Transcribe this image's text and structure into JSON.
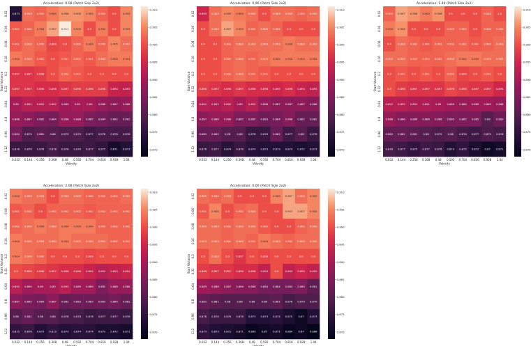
{
  "chart_data": [
    {
      "type": "heatmap",
      "title": "Acceleration: 0.08 (Patch Size 2x2)",
      "xlabel": "Velocity",
      "ylabel": "Start Variance",
      "x": [
        "0.032",
        "0.144",
        "0.256",
        "0.368",
        "0.48",
        "0.592",
        "0.704",
        "0.816",
        "0.928",
        "1.04"
      ],
      "y": [
        "0.02",
        "0.06",
        "0.08",
        "0.16",
        "0.2",
        "0.32",
        "0.64",
        "0.8",
        "0.96",
        "1.12"
      ],
      "colorbar_ticks": [
        "0.910",
        "0.905",
        "0.900",
        "0.895",
        "0.890",
        "0.885",
        "0.880",
        "0.875",
        "0.870"
      ],
      "clim": [
        0.868,
        0.911
      ],
      "values": [
        [
          0.873,
          0.903,
          0.902,
          0.904,
          0.906,
          0.906,
          0.905,
          0.902,
          0.9,
          0.905
        ],
        [
          0.901,
          0.902,
          0.904,
          0.907,
          0.911,
          0.905,
          0.9,
          0.904,
          0.9,
          0.905
        ],
        [
          0.901,
          0.903,
          0.902,
          0.899,
          0.9,
          0.902,
          0.904,
          0.902,
          0.905,
          0.903
        ],
        [
          0.904,
          0.903,
          0.901,
          0.9,
          0.901,
          0.902,
          0.901,
          0.903,
          0.904,
          0.904
        ],
        [
          0.897,
          0.897,
          0.898,
          0.9,
          0.902,
          0.901,
          0.9,
          0.9,
          0.9,
          0.9
        ],
        [
          0.897,
          0.897,
          0.896,
          0.896,
          0.897,
          0.898,
          0.898,
          0.898,
          0.894,
          0.893
        ],
        [
          0.89,
          0.892,
          0.892,
          0.892,
          0.889,
          0.89,
          0.89,
          0.888,
          0.887,
          0.888
        ],
        [
          0.888,
          0.887,
          0.885,
          0.884,
          0.888,
          0.888,
          0.885,
          0.884,
          0.882,
          0.882
        ],
        [
          0.884,
          0.879,
          0.881,
          0.88,
          0.879,
          0.879,
          0.877,
          0.878,
          0.878,
          0.878
        ],
        [
          0.876,
          0.876,
          0.876,
          0.878,
          0.876,
          0.876,
          0.877,
          0.875,
          0.871,
          0.873
        ]
      ]
    },
    {
      "type": "heatmap",
      "title": "Acceleration: 0.96 (Patch Size 2x2)",
      "xlabel": "Velocity",
      "ylabel": "Start Variance",
      "x": [
        "0.032",
        "0.144",
        "0.256",
        "0.368",
        "0.48",
        "0.592",
        "0.704",
        "0.816",
        "0.928",
        "1.04"
      ],
      "y": [
        "0.02",
        "0.06",
        "0.08",
        "0.16",
        "0.2",
        "0.32",
        "0.64",
        "0.8",
        "0.96",
        "1.12"
      ],
      "colorbar_ticks": [
        "0.910",
        "0.905",
        "0.900",
        "0.895",
        "0.890",
        "0.885",
        "0.880",
        "0.875",
        "0.870"
      ],
      "clim": [
        0.868,
        0.911
      ],
      "values": [
        [
          0.895,
          0.903,
          0.905,
          0.904,
          0.903,
          0.9,
          0.903,
          0.903,
          0.902,
          0.903
        ],
        [
          0.9,
          0.903,
          0.907,
          0.905,
          0.902,
          0.903,
          0.902,
          0.9,
          0.9,
          0.9
        ],
        [
          0.9,
          0.9,
          0.902,
          0.903,
          0.903,
          0.903,
          0.903,
          0.904,
          0.903,
          0.903
        ],
        [
          0.9,
          0.9,
          0.902,
          0.903,
          0.902,
          0.903,
          0.904,
          0.904,
          0.904,
          0.904
        ],
        [
          0.9,
          0.9,
          0.902,
          0.903,
          0.902,
          0.901,
          0.9,
          0.9,
          0.9,
          0.9
        ],
        [
          0.898,
          0.897,
          0.896,
          0.897,
          0.896,
          0.896,
          0.895,
          0.896,
          0.894,
          0.893
        ],
        [
          0.892,
          0.891,
          0.892,
          0.89,
          0.892,
          0.888,
          0.887,
          0.887,
          0.887,
          0.886
        ],
        [
          0.887,
          0.888,
          0.888,
          0.885,
          0.885,
          0.883,
          0.884,
          0.886,
          0.882,
          0.882
        ],
        [
          0.882,
          0.882,
          0.88,
          0.88,
          0.876,
          0.876,
          0.882,
          0.877,
          0.88,
          0.876
        ],
        [
          0.876,
          0.877,
          0.874,
          0.876,
          0.874,
          0.873,
          0.873,
          0.873,
          0.872,
          0.873
        ]
      ]
    },
    {
      "type": "heatmap",
      "title": "Acceleration: 1.44 (Patch Size 2x2)",
      "xlabel": "Velocity",
      "ylabel": "Start Variance",
      "x": [
        "0.032",
        "0.144",
        "0.256",
        "0.368",
        "0.48",
        "0.592",
        "0.704",
        "0.816",
        "0.928",
        "1.04"
      ],
      "y": [
        "0.02",
        "0.06",
        "0.08",
        "0.16",
        "0.2",
        "0.32",
        "0.64",
        "0.8",
        "0.96",
        "1.12"
      ],
      "colorbar_ticks": [
        "0.910",
        "0.905",
        "0.900",
        "0.895",
        "0.890",
        "0.885",
        "0.880",
        "0.875",
        "0.870"
      ],
      "clim": [
        0.868,
        0.911
      ],
      "values": [
        [
          0.902,
          0.907,
          0.906,
          0.904,
          0.906,
          0.9,
          0.9,
          0.9,
          0.902,
          0.9
        ],
        [
          0.904,
          0.906,
          0.9,
          0.9,
          0.9,
          0.902,
          0.902,
          0.9,
          0.902,
          0.902
        ],
        [
          0.9,
          0.903,
          0.902,
          0.901,
          0.902,
          0.902,
          0.902,
          0.901,
          0.902,
          0.903
        ],
        [
          0.903,
          0.903,
          0.902,
          0.902,
          0.902,
          0.903,
          0.904,
          0.904,
          0.903,
          0.903
        ],
        [
          0.9,
          0.901,
          0.9,
          0.901,
          0.9,
          0.902,
          0.899,
          0.9,
          0.901,
          0.9
        ],
        [
          0.9,
          0.898,
          0.897,
          0.897,
          0.897,
          0.899,
          0.898,
          0.897,
          0.897,
          0.895
        ],
        [
          0.892,
          0.892,
          0.891,
          0.891,
          0.89,
          0.889,
          0.888,
          0.889,
          0.889,
          0.888
        ],
        [
          0.888,
          0.886,
          0.886,
          0.886,
          0.886,
          0.885,
          0.885,
          0.885,
          0.88,
          0.883
        ],
        [
          0.882,
          0.882,
          0.881,
          0.88,
          0.879,
          0.88,
          0.878,
          0.877,
          0.879,
          0.878
        ],
        [
          0.878,
          0.877,
          0.875,
          0.877,
          0.876,
          0.873,
          0.875,
          0.872,
          0.87,
          0.871
        ]
      ]
    },
    {
      "type": "heatmap",
      "title": "Acceleration: 2.08 (Patch Size 2x2)",
      "xlabel": "Velocity",
      "ylabel": "Start Variance",
      "x": [
        "0.032",
        "0.144",
        "0.256",
        "0.368",
        "0.48",
        "0.592",
        "0.704",
        "0.816",
        "0.928",
        "1.04"
      ],
      "y": [
        "0.02",
        "0.06",
        "0.08",
        "0.16",
        "0.2",
        "0.32",
        "0.64",
        "0.8",
        "0.96",
        "1.12"
      ],
      "colorbar_ticks": [
        "0.910",
        "0.905",
        "0.900",
        "0.895",
        "0.890",
        "0.885",
        "0.880",
        "0.875",
        "0.870"
      ],
      "clim": [
        0.868,
        0.911
      ],
      "values": [
        [
          0.904,
          0.903,
          0.903,
          0.9,
          0.903,
          0.903,
          0.902,
          0.902,
          0.902,
          0.903
        ],
        [
          0.901,
          0.902,
          0.9,
          0.902,
          0.902,
          0.902,
          0.901,
          0.902,
          0.902,
          0.902
        ],
        [
          0.902,
          0.903,
          0.904,
          0.903,
          0.904,
          0.904,
          0.904,
          0.902,
          0.902,
          0.902
        ],
        [
          0.904,
          0.903,
          0.903,
          0.903,
          0.904,
          0.903,
          0.903,
          0.903,
          0.902,
          0.902
        ],
        [
          0.904,
          0.903,
          0.902,
          0.9,
          0.9,
          0.9,
          0.899,
          0.9,
          0.9,
          0.9
        ],
        [
          0.9,
          0.899,
          0.898,
          0.897,
          0.896,
          0.896,
          0.894,
          0.892,
          0.893,
          0.894
        ],
        [
          0.892,
          0.889,
          0.89,
          0.89,
          0.892,
          0.889,
          0.889,
          0.885,
          0.888,
          0.888
        ],
        [
          0.887,
          0.885,
          0.884,
          0.887,
          0.882,
          0.883,
          0.883,
          0.883,
          0.884,
          0.882
        ],
        [
          0.88,
          0.882,
          0.88,
          0.88,
          0.878,
          0.878,
          0.876,
          0.877,
          0.877,
          0.876
        ],
        [
          0.875,
          0.876,
          0.873,
          0.875,
          0.873,
          0.874,
          0.874,
          0.872,
          0.872,
          0.871
        ]
      ]
    },
    {
      "type": "heatmap",
      "title": "Acceleration: 0.00 (Patch Size 2x2)",
      "xlabel": "Velocity",
      "ylabel": "Start Variance",
      "x": [
        "0.032",
        "0.144",
        "0.256",
        "0.368",
        "0.48",
        "0.592",
        "0.704",
        "0.816",
        "0.928",
        "1.04"
      ],
      "y": [
        "0.02",
        "0.06",
        "0.08",
        "0.16",
        "0.2",
        "0.32",
        "0.64",
        "0.8",
        "0.96",
        "1.12"
      ],
      "colorbar_ticks": [
        "0.910",
        "0.905",
        "0.900",
        "0.895",
        "0.890",
        "0.885",
        "0.880",
        "0.875",
        "0.870"
      ],
      "clim": [
        0.868,
        0.911
      ],
      "values": [
        [
          0.903,
          0.902,
          0.903,
          0.9,
          0.9,
          0.9,
          0.905,
          0.907,
          0.903,
          0.905
        ],
        [
          0.901,
          0.905,
          0.9,
          0.902,
          0.903,
          0.9,
          0.9,
          0.907,
          0.907,
          0.905
        ],
        [
          0.903,
          0.903,
          0.902,
          0.903,
          0.903,
          0.901,
          0.9,
          0.9,
          0.902,
          0.903
        ],
        [
          0.903,
          0.903,
          0.902,
          0.903,
          0.902,
          0.904,
          0.903,
          0.902,
          0.903,
          0.903
        ],
        [
          0.9,
          0.903,
          0.9,
          0.897,
          0.9,
          0.899,
          0.9,
          0.9,
          0.9,
          0.9
        ],
        [
          0.898,
          0.897,
          0.897,
          0.896,
          0.896,
          0.893,
          0.9,
          0.893,
          0.895,
          0.893
        ],
        [
          0.889,
          0.888,
          0.887,
          0.886,
          0.886,
          0.884,
          0.884,
          0.884,
          0.885,
          0.881
        ],
        [
          0.882,
          0.881,
          0.88,
          0.88,
          0.88,
          0.88,
          0.881,
          0.878,
          0.879,
          0.879
        ],
        [
          0.878,
          0.876,
          0.876,
          0.876,
          0.873,
          0.873,
          0.874,
          0.872,
          0.87,
          0.873
        ],
        [
          0.875,
          0.873,
          0.872,
          0.871,
          0.869,
          0.87,
          0.871,
          0.869,
          0.87,
          0.868
        ]
      ]
    }
  ]
}
